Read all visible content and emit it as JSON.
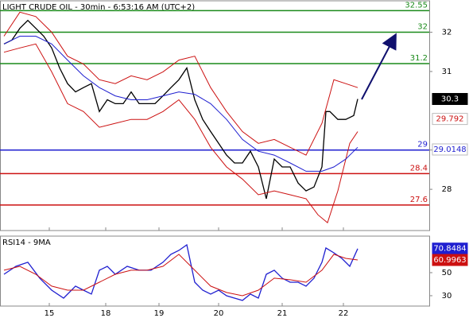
{
  "chart_data": [
    {
      "type": "line",
      "title": "LIGHT CRUDE OIL - 30min - 6:53:16 AM (UTC+2)",
      "xlim": [
        0,
        540
      ],
      "ylim": [
        26.95,
        32.8
      ],
      "yticks": [
        28,
        29,
        31,
        32
      ],
      "levels": [
        {
          "value": 32.55,
          "color": "#1a8a1a"
        },
        {
          "value": 32,
          "color": "#1a8a1a"
        },
        {
          "value": 31.2,
          "color": "#1a8a1a"
        },
        {
          "value": 29,
          "color": "#1f1fd0"
        },
        {
          "value": 28.4,
          "color": "#cc1111"
        },
        {
          "value": 27.6,
          "color": "#cc1111"
        }
      ],
      "price_labels": [
        {
          "value": 30.3,
          "color": "#000000",
          "text_color": "#ffffff"
        },
        {
          "value": 29.792,
          "color": "#ffffff",
          "text_color": "#cc1111"
        },
        {
          "value": 29.0148,
          "color": "#ffffff",
          "text_color": "#1f1fd0"
        }
      ],
      "series": [
        {
          "name": "Price",
          "color": "#000000",
          "x": [
            5,
            15,
            25,
            35,
            45,
            55,
            65,
            75,
            85,
            95,
            105,
            115,
            125,
            135,
            145,
            155,
            165,
            175,
            185,
            195,
            205,
            215,
            225,
            235,
            245,
            255,
            265,
            275,
            285,
            295,
            305,
            315,
            325,
            335,
            345,
            355,
            365,
            375,
            385,
            395,
            405,
            410,
            415,
            425,
            435,
            445,
            450
          ],
          "values": [
            31.7,
            31.8,
            32.1,
            32.3,
            32.1,
            31.9,
            31.6,
            31.09,
            30.69,
            30.48,
            30.59,
            30.69,
            29.98,
            30.28,
            30.18,
            30.18,
            30.48,
            30.18,
            30.18,
            30.18,
            30.38,
            30.59,
            30.79,
            31.09,
            30.28,
            29.78,
            29.47,
            29.17,
            28.87,
            28.67,
            28.67,
            28.97,
            28.57,
            27.76,
            28.77,
            28.57,
            28.57,
            28.16,
            27.96,
            28.06,
            28.57,
            29.98,
            29.98,
            29.78,
            29.78,
            29.88,
            30.3
          ]
        },
        {
          "name": "Upper band",
          "color": "#cc1111",
          "x": [
            5,
            25,
            45,
            65,
            85,
            105,
            125,
            145,
            165,
            185,
            205,
            225,
            245,
            265,
            285,
            305,
            325,
            345,
            365,
            385,
            405,
            420,
            435,
            450
          ],
          "values": [
            31.9,
            32.51,
            32.4,
            32.0,
            31.39,
            31.19,
            30.79,
            30.69,
            30.89,
            30.79,
            30.99,
            31.29,
            31.39,
            30.59,
            29.98,
            29.47,
            29.17,
            29.27,
            29.07,
            28.87,
            29.68,
            30.79,
            30.69,
            30.59
          ]
        },
        {
          "name": "Lower band",
          "color": "#cc1111",
          "x": [
            5,
            25,
            45,
            65,
            85,
            105,
            125,
            145,
            165,
            185,
            205,
            225,
            245,
            265,
            285,
            305,
            325,
            345,
            365,
            385,
            400,
            412,
            425,
            440,
            450
          ],
          "values": [
            31.49,
            31.6,
            31.7,
            30.99,
            30.18,
            29.98,
            29.58,
            29.68,
            29.78,
            29.78,
            29.98,
            30.28,
            29.78,
            29.07,
            28.57,
            28.26,
            27.86,
            27.96,
            27.86,
            27.76,
            27.35,
            27.15,
            27.96,
            29.17,
            29.47
          ]
        },
        {
          "name": "Moving average",
          "color": "#1f1fd0",
          "x": [
            5,
            25,
            45,
            65,
            85,
            105,
            125,
            145,
            165,
            185,
            205,
            225,
            245,
            265,
            285,
            305,
            325,
            345,
            365,
            385,
            405,
            420,
            435,
            450
          ],
          "values": [
            31.7,
            31.9,
            31.9,
            31.7,
            31.29,
            30.89,
            30.59,
            30.38,
            30.28,
            30.28,
            30.38,
            30.48,
            30.42,
            30.18,
            29.78,
            29.27,
            28.97,
            28.87,
            28.67,
            28.46,
            28.46,
            28.57,
            28.77,
            29.07
          ]
        }
      ]
    },
    {
      "type": "line",
      "title": "RSI14 - 9MA",
      "xlim": [
        0,
        540
      ],
      "ylim": [
        21,
        81.7
      ],
      "yticks": [
        30,
        50
      ],
      "xticks": [
        {
          "value": 62,
          "label": "15"
        },
        {
          "value": 133,
          "label": "18"
        },
        {
          "value": 200,
          "label": "19"
        },
        {
          "value": 275,
          "label": "20"
        },
        {
          "value": 355,
          "label": "21"
        },
        {
          "value": 432,
          "label": "22"
        }
      ],
      "price_labels": [
        {
          "value": 70.8484,
          "color": "#1f1fd0",
          "text_color": "#ffffff"
        },
        {
          "value": 60.9963,
          "color": "#cc1111",
          "text_color": "#ffffff"
        }
      ],
      "series": [
        {
          "name": "RSI14",
          "color": "#1f1fd0",
          "x": [
            5,
            20,
            35,
            50,
            65,
            80,
            95,
            105,
            115,
            125,
            135,
            145,
            160,
            175,
            190,
            205,
            215,
            225,
            235,
            245,
            255,
            265,
            275,
            285,
            295,
            305,
            315,
            325,
            335,
            345,
            355,
            365,
            375,
            385,
            395,
            405,
            410,
            420,
            430,
            440,
            450
          ],
          "values": [
            48.6,
            55.5,
            59.0,
            45.2,
            34.8,
            27.9,
            38.3,
            34.8,
            31.4,
            52.1,
            55.5,
            48.6,
            55.5,
            52.1,
            52.1,
            59.0,
            65.9,
            69.3,
            74.1,
            41.7,
            34.8,
            31.4,
            34.8,
            30.0,
            27.9,
            25.9,
            31.4,
            27.9,
            48.6,
            52.1,
            45.2,
            41.7,
            41.7,
            38.3,
            45.2,
            59.0,
            71.4,
            67.2,
            62.4,
            55.5,
            70.8
          ]
        },
        {
          "name": "9MA",
          "color": "#cc1111",
          "x": [
            5,
            25,
            45,
            65,
            85,
            105,
            125,
            145,
            165,
            185,
            205,
            225,
            245,
            265,
            285,
            305,
            325,
            345,
            365,
            385,
            405,
            420,
            435,
            450
          ],
          "values": [
            52.1,
            55.5,
            48.6,
            38.3,
            34.8,
            34.8,
            41.7,
            48.6,
            52.1,
            52.1,
            55.5,
            65.9,
            52.1,
            38.3,
            32.8,
            30.0,
            34.8,
            45.2,
            43.8,
            41.7,
            52.1,
            65.9,
            62.4,
            61.0
          ]
        }
      ]
    }
  ]
}
